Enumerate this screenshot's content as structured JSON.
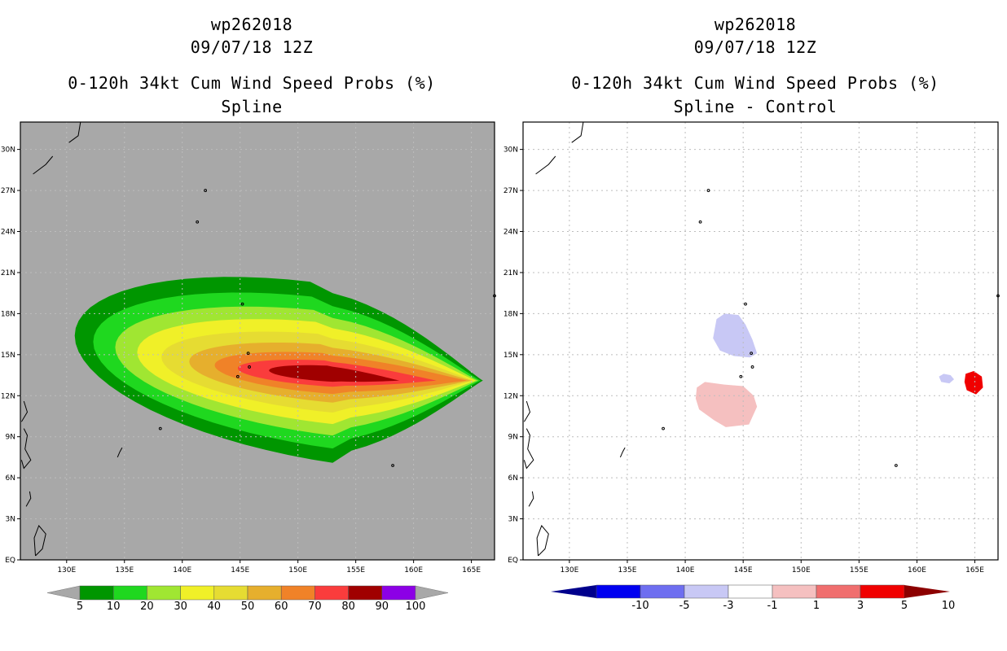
{
  "chart_data": [
    {
      "type": "heatmap",
      "id": "spline",
      "title_lines": [
        "wp262018",
        "09/07/18 12Z",
        "0-120h 34kt Cum Wind Speed Probs (%)",
        "Spline"
      ],
      "x_ticks": [
        "130E",
        "135E",
        "140E",
        "145E",
        "150E",
        "155E",
        "160E",
        "165E"
      ],
      "y_ticks": [
        "EQ",
        "3N",
        "6N",
        "9N",
        "12N",
        "15N",
        "18N",
        "21N",
        "24N",
        "27N",
        "30N"
      ],
      "xlim": [
        126,
        167
      ],
      "ylim": [
        0,
        32
      ],
      "background_color": "#a8a8a8",
      "colorbar": {
        "labels": [
          "5",
          "10",
          "20",
          "30",
          "40",
          "50",
          "60",
          "70",
          "80",
          "90",
          "100"
        ],
        "colors": [
          "#009600",
          "#1fd81f",
          "#a0e632",
          "#f0f028",
          "#e6dc32",
          "#e6af2d",
          "#f08228",
          "#fa3c3c",
          "#a00000",
          "#8c00e6"
        ]
      },
      "field": {
        "center_lon": 153,
        "center_lat": 13.6,
        "levels": [
          {
            "value": 5,
            "color": "#009600",
            "rx": 22.3,
            "ry": 6.2,
            "tip_lon": 166.0
          },
          {
            "value": 10,
            "color": "#1fd81f",
            "rx": 20.7,
            "ry": 5.2,
            "tip_lon": 165.8
          },
          {
            "value": 20,
            "color": "#a0e632",
            "rx": 18.8,
            "ry": 4.3,
            "tip_lon": 165.6
          },
          {
            "value": 30,
            "color": "#f0f028",
            "rx": 16.9,
            "ry": 3.5,
            "tip_lon": 165.4
          },
          {
            "value": 40,
            "color": "#e6dc32",
            "rx": 14.8,
            "ry": 2.7,
            "tip_lon": 165.2
          },
          {
            "value": 50,
            "color": "#e6af2d",
            "rx": 12.4,
            "ry": 2.0,
            "tip_lon": 165.0
          },
          {
            "value": 60,
            "color": "#f08228",
            "rx": 10.2,
            "ry": 1.4,
            "tip_lon": 164.6
          },
          {
            "value": 70,
            "color": "#fa3c3c",
            "rx": 8.2,
            "ry": 0.9,
            "tip_lon": 162.0
          },
          {
            "value": 80,
            "color": "#a00000",
            "rx": 5.5,
            "ry": 0.55,
            "tip_lon": 158.8
          }
        ]
      }
    },
    {
      "type": "heatmap",
      "id": "spline-control",
      "title_lines": [
        "wp262018",
        "09/07/18 12Z",
        "0-120h 34kt Cum Wind Speed Probs (%)",
        "Spline - Control"
      ],
      "x_ticks": [
        "130E",
        "135E",
        "140E",
        "145E",
        "150E",
        "155E",
        "160E",
        "165E"
      ],
      "y_ticks": [
        "EQ",
        "3N",
        "6N",
        "9N",
        "12N",
        "15N",
        "18N",
        "21N",
        "24N",
        "27N",
        "30N"
      ],
      "xlim": [
        126,
        167
      ],
      "ylim": [
        0,
        32
      ],
      "background_color": "#ffffff",
      "colorbar": {
        "labels": [
          "-10",
          "-5",
          "-3",
          "-1",
          "1",
          "3",
          "5",
          "10"
        ],
        "colors": [
          "#00008c",
          "#0000f0",
          "#6e6ef0",
          "#c8c8f5",
          "#ffffff",
          "#f5c0c0",
          "#f06e6e",
          "#f00000",
          "#8c0000"
        ]
      },
      "anomalies": [
        {
          "sign": "negative",
          "level": "-3..-1",
          "color": "#c8c8f5",
          "center_lon": 144,
          "center_lat": 16.0
        },
        {
          "sign": "positive",
          "level": "1..3",
          "color": "#f5c0c0",
          "center_lon": 143.5,
          "center_lat": 11.8
        },
        {
          "sign": "negative",
          "level": "-3..-1",
          "color": "#c8c8f5",
          "center_lon": 162.6,
          "center_lat": 13.2
        },
        {
          "sign": "positive",
          "level": "3..10",
          "color": "#f00000",
          "center_lon": 164.9,
          "center_lat": 13.0
        }
      ]
    }
  ]
}
